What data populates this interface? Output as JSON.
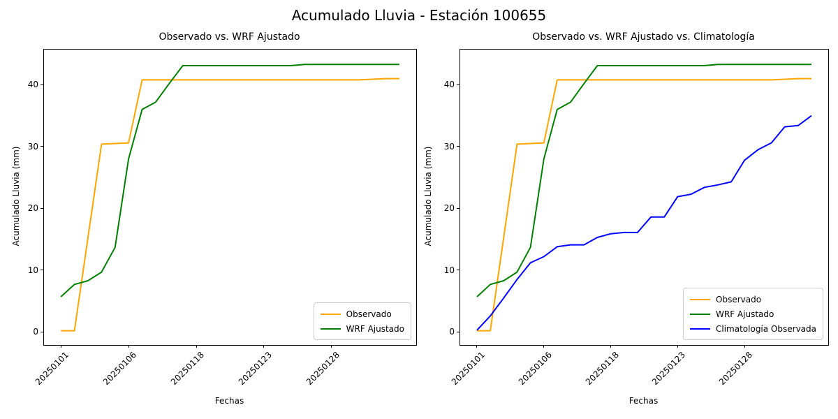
{
  "figure": {
    "title": "Acumulado Lluvia - Estación 100655",
    "background_color": "#ffffff",
    "text_color": "#000000",
    "axes_border_color": "#000000"
  },
  "chart_data": [
    {
      "type": "line",
      "title": "Observado vs. WRF Ajustado",
      "xlabel": "Fechas",
      "ylabel": "Acumulado Lluvia (mm)",
      "x_tick_positions": [
        0,
        5,
        10,
        15,
        20
      ],
      "x_tick_labels": [
        "20250101",
        "20250106",
        "20250118",
        "20250123",
        "20250128"
      ],
      "y_ticks": [
        0,
        10,
        20,
        30,
        40
      ],
      "xlim": [
        -1.25,
        26.25
      ],
      "ylim": [
        -2.1,
        45.7
      ],
      "grid": false,
      "legend_position": "lower right",
      "series": [
        {
          "name": "Observado",
          "color": "#ffa500",
          "values": [
            0.2,
            0.2,
            15.3,
            30.4,
            30.5,
            30.6,
            40.8,
            40.8,
            40.8,
            40.8,
            40.8,
            40.8,
            40.8,
            40.8,
            40.8,
            40.8,
            40.8,
            40.8,
            40.8,
            40.8,
            40.8,
            40.8,
            40.8,
            40.9,
            41.0,
            41.0
          ]
        },
        {
          "name": "WRF Ajustado",
          "color": "#008000",
          "values": [
            5.7,
            7.7,
            8.3,
            9.7,
            13.7,
            28.0,
            36.0,
            37.2,
            40.2,
            43.1,
            43.1,
            43.1,
            43.1,
            43.1,
            43.1,
            43.1,
            43.1,
            43.1,
            43.3,
            43.3,
            43.3,
            43.3,
            43.3,
            43.3,
            43.3,
            43.3
          ]
        }
      ]
    },
    {
      "type": "line",
      "title": "Observado vs. WRF Ajustado vs. Climatología",
      "xlabel": "Fechas",
      "ylabel": "Acumulado Lluvia (mm)",
      "x_tick_positions": [
        0,
        5,
        10,
        15,
        20
      ],
      "x_tick_labels": [
        "20250101",
        "20250106",
        "20250118",
        "20250123",
        "20250128"
      ],
      "y_ticks": [
        0,
        10,
        20,
        30,
        40
      ],
      "xlim": [
        -1.25,
        26.25
      ],
      "ylim": [
        -2.1,
        45.7
      ],
      "grid": false,
      "legend_position": "lower right",
      "series": [
        {
          "name": "Observado",
          "color": "#ffa500",
          "values": [
            0.2,
            0.2,
            15.3,
            30.4,
            30.5,
            30.6,
            40.8,
            40.8,
            40.8,
            40.8,
            40.8,
            40.8,
            40.8,
            40.8,
            40.8,
            40.8,
            40.8,
            40.8,
            40.8,
            40.8,
            40.8,
            40.8,
            40.8,
            40.9,
            41.0,
            41.0
          ]
        },
        {
          "name": "WRF Ajustado",
          "color": "#008000",
          "values": [
            5.7,
            7.7,
            8.3,
            9.7,
            13.7,
            28.0,
            36.0,
            37.2,
            40.2,
            43.1,
            43.1,
            43.1,
            43.1,
            43.1,
            43.1,
            43.1,
            43.1,
            43.1,
            43.3,
            43.3,
            43.3,
            43.3,
            43.3,
            43.3,
            43.3,
            43.3
          ]
        },
        {
          "name": "Climatología Observada",
          "color": "#0000ff",
          "values": [
            0.3,
            2.6,
            5.5,
            8.5,
            11.2,
            12.2,
            13.8,
            14.1,
            14.1,
            15.3,
            15.9,
            16.1,
            16.1,
            18.6,
            18.6,
            21.9,
            22.3,
            23.4,
            23.8,
            24.3,
            27.8,
            29.5,
            30.6,
            33.2,
            33.4,
            35.0
          ]
        }
      ]
    }
  ]
}
